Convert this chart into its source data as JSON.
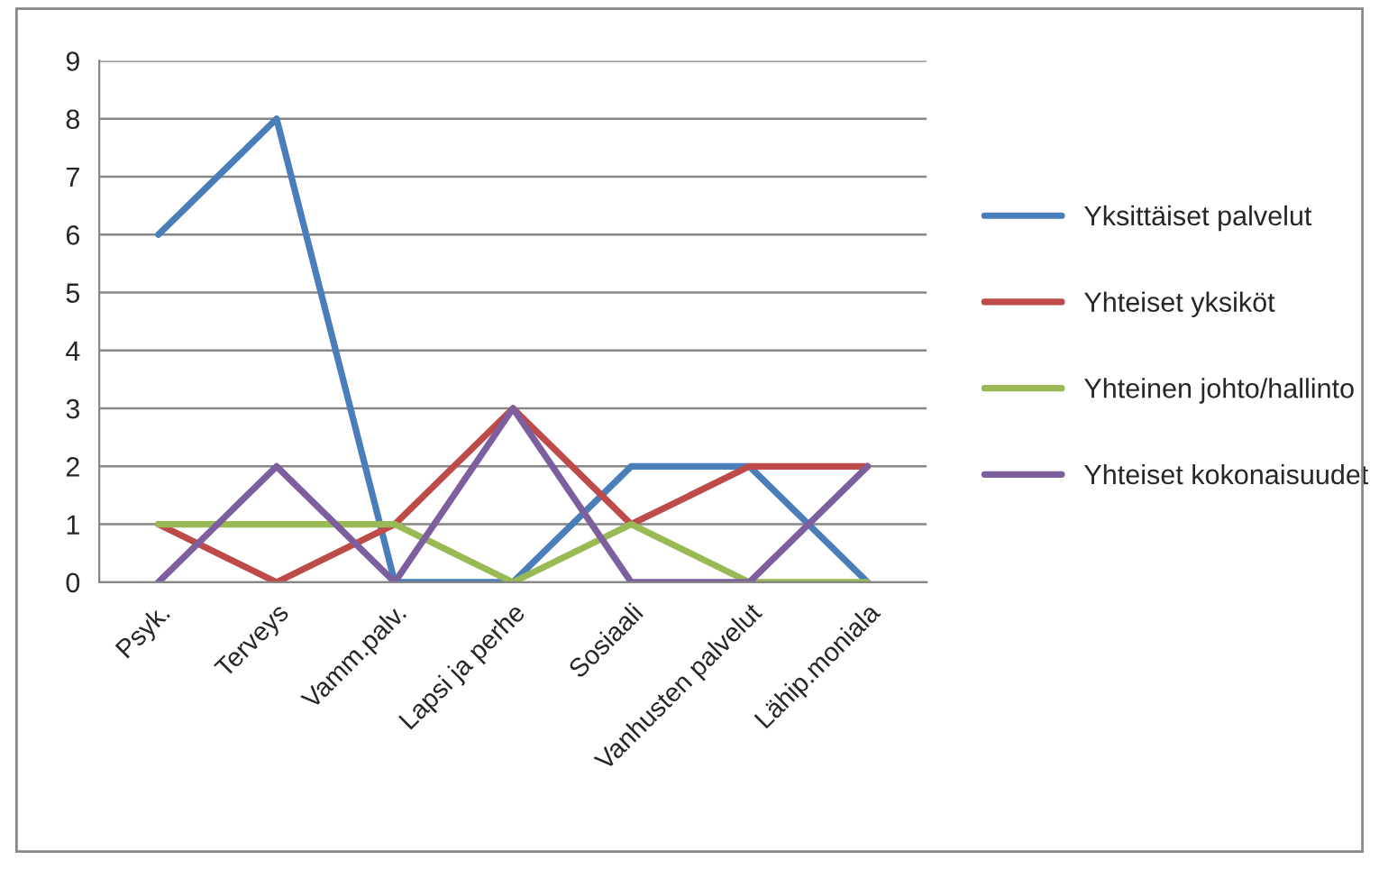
{
  "chart_data": {
    "type": "line",
    "categories": [
      "Psyk.",
      "Terveys",
      "Vamm.palv.",
      "Lapsi ja perhe",
      "Sosiaali",
      "Vanhusten palvelut",
      "Lähip.moniala"
    ],
    "series": [
      {
        "name": "Yksittäiset palvelut",
        "color": "#4a7ebb",
        "values": [
          6,
          8,
          0,
          0,
          2,
          2,
          0
        ]
      },
      {
        "name": "Yhteiset yksiköt",
        "color": "#be4b48",
        "values": [
          1,
          0,
          1,
          3,
          1,
          2,
          2
        ]
      },
      {
        "name": "Yhteinen johto/hallinto",
        "color": "#98b954",
        "values": [
          1,
          1,
          1,
          0,
          1,
          0,
          0
        ]
      },
      {
        "name": "Yhteiset kokonaisuudet",
        "color": "#7d5fa0",
        "values": [
          0,
          2,
          0,
          3,
          0,
          0,
          2
        ]
      }
    ],
    "ylim": [
      0,
      9
    ],
    "yticks": [
      0,
      1,
      2,
      3,
      4,
      5,
      6,
      7,
      8,
      9
    ],
    "grid": "y",
    "legend": "right",
    "marker": "none",
    "line_style": "solid"
  }
}
